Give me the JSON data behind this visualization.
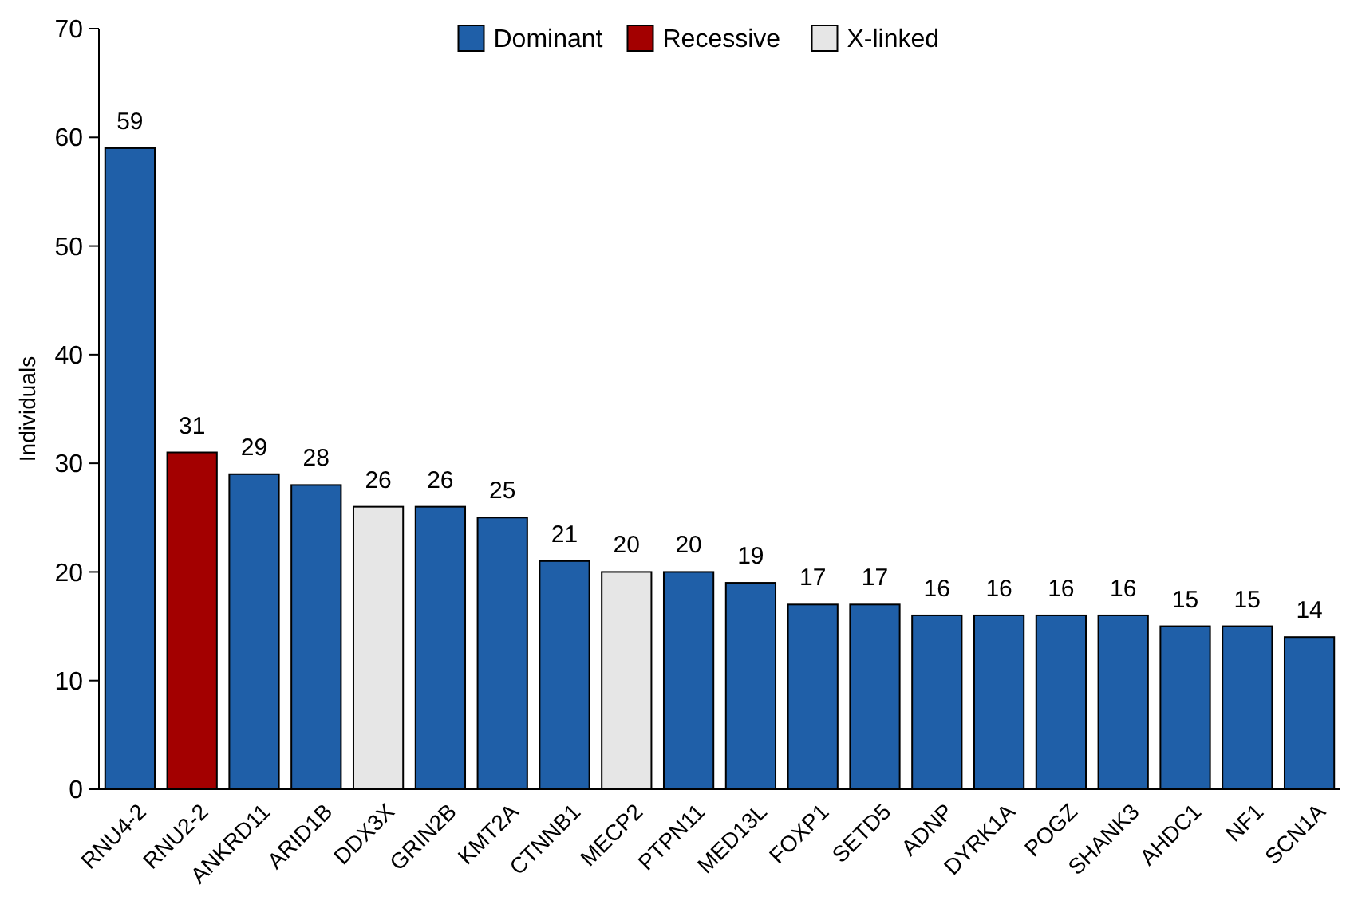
{
  "chart_data": {
    "type": "bar",
    "ylabel": "Individuals",
    "categories": [
      "RNU4-2",
      "RNU2-2",
      "ANKRD11",
      "ARID1B",
      "DDX3X",
      "GRIN2B",
      "KMT2A",
      "CTNNB1",
      "MECP2",
      "PTPN11",
      "MED13L",
      "FOXP1",
      "SETD5",
      "ADNP",
      "DYRK1A",
      "POGZ",
      "SHANK3",
      "AHDC1",
      "NF1",
      "SCN1A"
    ],
    "series": [
      {
        "name": "Dominant",
        "color": "#1f5fa8",
        "values": [
          59,
          null,
          29,
          28,
          null,
          26,
          25,
          21,
          null,
          20,
          19,
          17,
          17,
          16,
          16,
          16,
          16,
          15,
          15,
          14
        ]
      },
      {
        "name": "Recessive",
        "color": "#a30000",
        "values": [
          null,
          31,
          null,
          null,
          null,
          null,
          null,
          null,
          null,
          null,
          null,
          null,
          null,
          null,
          null,
          null,
          null,
          null,
          null,
          null
        ]
      },
      {
        "name": "X-linked",
        "color": "#e6e6e6",
        "values": [
          null,
          null,
          null,
          null,
          26,
          null,
          null,
          null,
          20,
          null,
          null,
          null,
          null,
          null,
          null,
          null,
          null,
          null,
          null,
          null
        ]
      }
    ],
    "ylim": [
      0,
      70
    ],
    "yticks": [
      0,
      10,
      20,
      30,
      40,
      50,
      60,
      70
    ],
    "data_labels": true,
    "legend": "top",
    "grid": false
  }
}
